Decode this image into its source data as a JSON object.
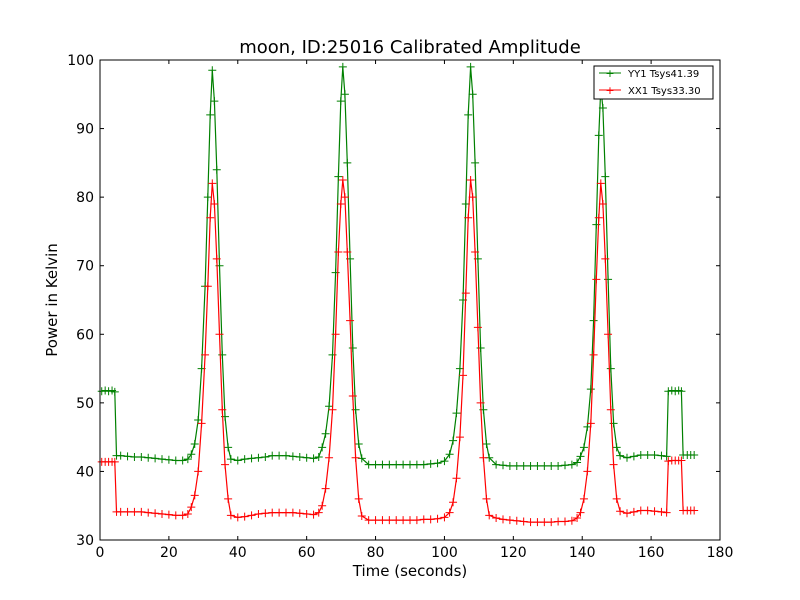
{
  "chart_data": {
    "type": "line",
    "title": "moon, ID:25016 Calibrated Amplitude",
    "xlabel": "Time (seconds)",
    "ylabel": "Power in Kelvin",
    "xlim": [
      0,
      180
    ],
    "ylim": [
      30,
      100
    ],
    "xticks": [
      0,
      20,
      40,
      60,
      80,
      100,
      120,
      140,
      160,
      180
    ],
    "yticks": [
      30,
      40,
      50,
      60,
      70,
      80,
      90,
      100
    ],
    "grid": false,
    "legend_position": "top-right",
    "series": [
      {
        "name": "YY1 Tsys41.39",
        "color": "#008000",
        "marker": "plus",
        "points": [
          [
            0.5,
            51.7
          ],
          [
            1.5,
            51.8
          ],
          [
            2.5,
            51.7
          ],
          [
            3.5,
            51.8
          ],
          [
            4.3,
            51.6
          ],
          [
            4.8,
            42.3
          ],
          [
            6,
            42.3
          ],
          [
            8,
            42.2
          ],
          [
            10,
            42.1
          ],
          [
            12,
            42.1
          ],
          [
            14,
            42.0
          ],
          [
            16,
            41.9
          ],
          [
            18,
            41.8
          ],
          [
            20,
            41.7
          ],
          [
            22,
            41.6
          ],
          [
            24,
            41.6
          ],
          [
            25.5,
            41.8
          ],
          [
            26.5,
            42.5
          ],
          [
            27.5,
            44.0
          ],
          [
            28.5,
            47.5
          ],
          [
            29.5,
            55.0
          ],
          [
            30.5,
            67.0
          ],
          [
            31.3,
            80.0
          ],
          [
            32,
            92.0
          ],
          [
            32.6,
            98.5
          ],
          [
            33.2,
            94.0
          ],
          [
            33.9,
            84.0
          ],
          [
            34.7,
            70.0
          ],
          [
            35.5,
            57.0
          ],
          [
            36.3,
            48.0
          ],
          [
            37.2,
            43.5
          ],
          [
            38,
            41.8
          ],
          [
            40,
            41.6
          ],
          [
            42,
            41.8
          ],
          [
            44,
            41.9
          ],
          [
            46,
            42.0
          ],
          [
            48,
            42.1
          ],
          [
            50,
            42.3
          ],
          [
            52,
            42.3
          ],
          [
            54,
            42.3
          ],
          [
            56,
            42.2
          ],
          [
            58,
            42.1
          ],
          [
            60,
            42.0
          ],
          [
            62,
            41.9
          ],
          [
            63.5,
            42.1
          ],
          [
            64.5,
            43.5
          ],
          [
            65.5,
            45.5
          ],
          [
            66.5,
            49.5
          ],
          [
            67.5,
            57.0
          ],
          [
            68.4,
            69.0
          ],
          [
            69.2,
            83.0
          ],
          [
            69.9,
            94.0
          ],
          [
            70.5,
            99.0
          ],
          [
            71.1,
            95.0
          ],
          [
            71.8,
            85.0
          ],
          [
            72.6,
            71.0
          ],
          [
            73.4,
            58.0
          ],
          [
            74.2,
            49.0
          ],
          [
            75.1,
            44.0
          ],
          [
            76,
            41.9
          ],
          [
            78,
            41.0
          ],
          [
            80,
            41.0
          ],
          [
            82,
            41.0
          ],
          [
            84,
            41.0
          ],
          [
            86,
            41.0
          ],
          [
            88,
            41.0
          ],
          [
            90,
            41.0
          ],
          [
            92,
            41.0
          ],
          [
            94,
            41.0
          ],
          [
            96,
            41.1
          ],
          [
            98,
            41.2
          ],
          [
            100,
            41.5
          ],
          [
            101.5,
            42.5
          ],
          [
            102.5,
            44.5
          ],
          [
            103.5,
            48.5
          ],
          [
            104.5,
            55.0
          ],
          [
            105.4,
            65.0
          ],
          [
            106.2,
            79.0
          ],
          [
            106.9,
            92.0
          ],
          [
            107.6,
            99.0
          ],
          [
            108.2,
            95.0
          ],
          [
            108.9,
            85.0
          ],
          [
            109.7,
            71.0
          ],
          [
            110.5,
            58.0
          ],
          [
            111.3,
            49.0
          ],
          [
            112.2,
            44.0
          ],
          [
            113,
            42.0
          ],
          [
            115,
            41.0
          ],
          [
            117,
            40.9
          ],
          [
            119,
            40.8
          ],
          [
            121,
            40.8
          ],
          [
            123,
            40.8
          ],
          [
            125,
            40.8
          ],
          [
            127,
            40.8
          ],
          [
            129,
            40.8
          ],
          [
            131,
            40.8
          ],
          [
            133,
            40.8
          ],
          [
            135,
            40.9
          ],
          [
            137,
            41.0
          ],
          [
            138.5,
            41.3
          ],
          [
            139.5,
            42.2
          ],
          [
            140.5,
            43.5
          ],
          [
            141.5,
            46.5
          ],
          [
            142.5,
            52.0
          ],
          [
            143.3,
            62.0
          ],
          [
            144.1,
            76.0
          ],
          [
            144.8,
            89.0
          ],
          [
            145.4,
            96.0
          ],
          [
            146,
            93.0
          ],
          [
            146.7,
            83.0
          ],
          [
            147.5,
            68.0
          ],
          [
            148.3,
            55.0
          ],
          [
            149.1,
            47.0
          ],
          [
            150,
            43.5
          ],
          [
            151,
            42.3
          ],
          [
            153,
            42.0
          ],
          [
            155,
            42.2
          ],
          [
            157,
            42.4
          ],
          [
            159,
            42.4
          ],
          [
            161,
            42.4
          ],
          [
            163,
            42.3
          ],
          [
            164.5,
            42.2
          ],
          [
            165,
            51.7
          ],
          [
            166,
            51.8
          ],
          [
            167,
            51.7
          ],
          [
            168,
            51.8
          ],
          [
            168.8,
            51.7
          ],
          [
            169.3,
            42.4
          ],
          [
            170.5,
            42.4
          ],
          [
            171.5,
            42.4
          ],
          [
            172.5,
            42.4
          ]
        ]
      },
      {
        "name": "XX1 Tsys33.30",
        "color": "#ff0000",
        "marker": "plus",
        "points": [
          [
            0.5,
            41.4
          ],
          [
            1.5,
            41.4
          ],
          [
            2.5,
            41.4
          ],
          [
            3.5,
            41.4
          ],
          [
            4.3,
            41.4
          ],
          [
            4.8,
            34.1
          ],
          [
            6,
            34.1
          ],
          [
            8,
            34.1
          ],
          [
            10,
            34.1
          ],
          [
            12,
            34.1
          ],
          [
            14,
            34.0
          ],
          [
            16,
            33.9
          ],
          [
            18,
            33.8
          ],
          [
            20,
            33.7
          ],
          [
            22,
            33.6
          ],
          [
            24,
            33.6
          ],
          [
            25.5,
            33.8
          ],
          [
            26.5,
            34.8
          ],
          [
            27.5,
            36.5
          ],
          [
            28.5,
            40.0
          ],
          [
            29.5,
            47.0
          ],
          [
            30.5,
            57.0
          ],
          [
            31.3,
            67.0
          ],
          [
            32,
            77.0
          ],
          [
            32.6,
            82.0
          ],
          [
            33.2,
            79.0
          ],
          [
            33.9,
            71.0
          ],
          [
            34.7,
            60.0
          ],
          [
            35.5,
            49.0
          ],
          [
            36.3,
            41.0
          ],
          [
            37.2,
            36.0
          ],
          [
            38,
            33.6
          ],
          [
            40,
            33.3
          ],
          [
            42,
            33.4
          ],
          [
            44,
            33.6
          ],
          [
            46,
            33.8
          ],
          [
            48,
            33.9
          ],
          [
            50,
            34.0
          ],
          [
            52,
            34.0
          ],
          [
            54,
            34.0
          ],
          [
            56,
            34.0
          ],
          [
            58,
            33.9
          ],
          [
            60,
            33.8
          ],
          [
            62,
            33.7
          ],
          [
            63.5,
            34.0
          ],
          [
            64.5,
            35.0
          ],
          [
            65.5,
            37.5
          ],
          [
            66.5,
            42.0
          ],
          [
            67.5,
            49.0
          ],
          [
            68.4,
            60.0
          ],
          [
            69.2,
            72.0
          ],
          [
            69.9,
            79.0
          ],
          [
            70.5,
            82.5
          ],
          [
            71.1,
            80.0
          ],
          [
            71.8,
            72.0
          ],
          [
            72.6,
            62.0
          ],
          [
            73.4,
            51.0
          ],
          [
            74.2,
            42.0
          ],
          [
            75.1,
            36.0
          ],
          [
            76,
            33.5
          ],
          [
            78,
            32.9
          ],
          [
            80,
            32.9
          ],
          [
            82,
            32.9
          ],
          [
            84,
            32.9
          ],
          [
            86,
            32.9
          ],
          [
            88,
            32.9
          ],
          [
            90,
            32.9
          ],
          [
            92,
            32.9
          ],
          [
            94,
            33.0
          ],
          [
            96,
            33.0
          ],
          [
            98,
            33.1
          ],
          [
            100,
            33.3
          ],
          [
            101.5,
            34.0
          ],
          [
            102.5,
            35.5
          ],
          [
            103.5,
            39.0
          ],
          [
            104.5,
            45.0
          ],
          [
            105.4,
            54.0
          ],
          [
            106.2,
            66.0
          ],
          [
            106.9,
            77.0
          ],
          [
            107.6,
            82.5
          ],
          [
            108.2,
            80.0
          ],
          [
            108.9,
            72.0
          ],
          [
            109.7,
            61.0
          ],
          [
            110.5,
            50.0
          ],
          [
            111.3,
            42.0
          ],
          [
            112.2,
            36.0
          ],
          [
            113,
            33.6
          ],
          [
            115,
            33.2
          ],
          [
            117,
            33.0
          ],
          [
            119,
            32.9
          ],
          [
            121,
            32.8
          ],
          [
            123,
            32.7
          ],
          [
            125,
            32.6
          ],
          [
            127,
            32.6
          ],
          [
            129,
            32.6
          ],
          [
            131,
            32.6
          ],
          [
            133,
            32.7
          ],
          [
            135,
            32.7
          ],
          [
            137,
            32.8
          ],
          [
            138.5,
            33.2
          ],
          [
            139.5,
            34.0
          ],
          [
            140.5,
            36.0
          ],
          [
            141.5,
            40.0
          ],
          [
            142.5,
            47.0
          ],
          [
            143.3,
            57.0
          ],
          [
            144.1,
            68.0
          ],
          [
            144.8,
            77.0
          ],
          [
            145.4,
            82.0
          ],
          [
            146,
            79.0
          ],
          [
            146.7,
            71.0
          ],
          [
            147.5,
            60.0
          ],
          [
            148.3,
            49.0
          ],
          [
            149.1,
            41.0
          ],
          [
            150,
            36.0
          ],
          [
            151,
            34.2
          ],
          [
            153,
            33.9
          ],
          [
            155,
            34.1
          ],
          [
            157,
            34.3
          ],
          [
            159,
            34.3
          ],
          [
            161,
            34.2
          ],
          [
            163,
            34.1
          ],
          [
            164.5,
            34.0
          ],
          [
            165,
            41.5
          ],
          [
            166,
            41.6
          ],
          [
            167,
            41.6
          ],
          [
            168,
            41.6
          ],
          [
            168.8,
            41.6
          ],
          [
            169.3,
            34.3
          ],
          [
            170.5,
            34.3
          ],
          [
            171.5,
            34.3
          ],
          [
            172.5,
            34.3
          ]
        ]
      }
    ]
  }
}
